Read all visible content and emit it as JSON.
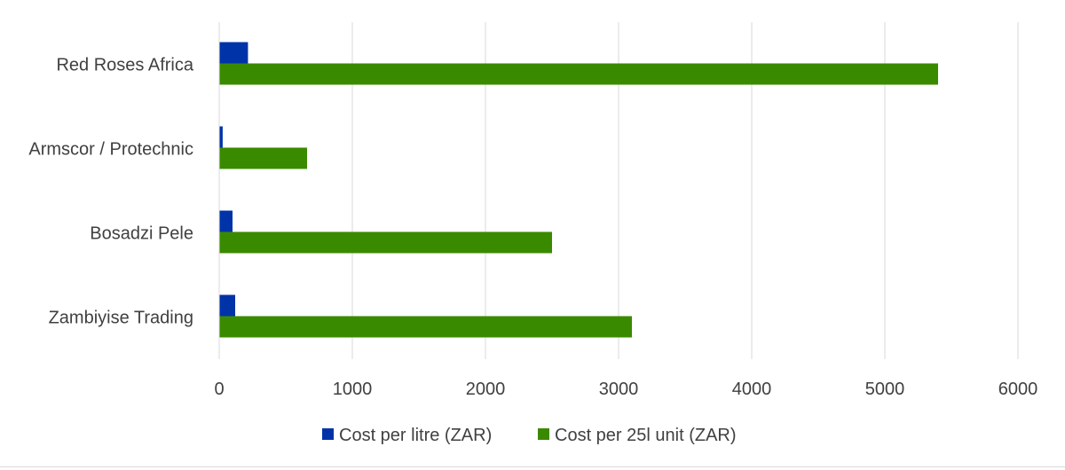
{
  "chart_data": {
    "type": "bar",
    "orientation": "horizontal",
    "categories": [
      "Red Roses Africa",
      "Armscor / Protechnic",
      "Bosadzi Pele",
      "Zambiyise Trading"
    ],
    "series": [
      {
        "name": "Cost per litre (ZAR)",
        "color": "#0033a8",
        "values": [
          216,
          26,
          100,
          120
        ]
      },
      {
        "name": "Cost per 25l unit (ZAR)",
        "color": "#3a8a00",
        "values": [
          5400,
          660,
          2500,
          3100
        ]
      }
    ],
    "xlim": [
      0,
      6000
    ],
    "xticks": [
      0,
      1000,
      2000,
      3000,
      4000,
      5000,
      6000
    ],
    "grid": true,
    "legend_position": "bottom"
  }
}
